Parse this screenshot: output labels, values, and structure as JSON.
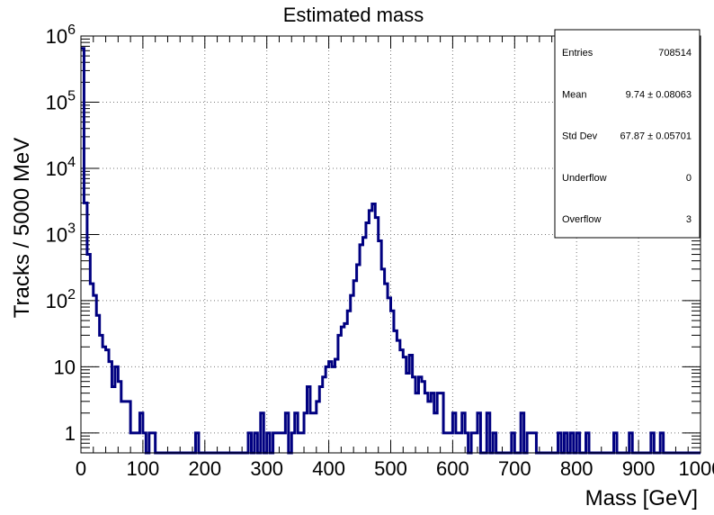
{
  "chart_data": {
    "type": "histogram",
    "title": "Estimated mass",
    "xlabel": "Mass [GeV]",
    "ylabel": "Tracks / 5000 MeV",
    "xlim": [
      0,
      1000
    ],
    "ylim": [
      0.5,
      1000000
    ],
    "yscale": "log",
    "grid": true,
    "bin_width": 5,
    "line_color": "#000080",
    "x_ticks": [
      "0",
      "100",
      "200",
      "300",
      "400",
      "500",
      "600",
      "700",
      "800",
      "900",
      "1000"
    ],
    "y_ticks": [
      {
        "base": "1",
        "exp": "",
        "value": 1
      },
      {
        "base": "10",
        "exp": "",
        "value": 10
      },
      {
        "base": "10",
        "exp": "2",
        "value": 100
      },
      {
        "base": "10",
        "exp": "3",
        "value": 1000
      },
      {
        "base": "10",
        "exp": "4",
        "value": 10000
      },
      {
        "base": "10",
        "exp": "5",
        "value": 100000
      },
      {
        "base": "10",
        "exp": "6",
        "value": 1000000
      }
    ],
    "bins": [
      {
        "x": 0,
        "y": 650000
      },
      {
        "x": 5,
        "y": 3000
      },
      {
        "x": 10,
        "y": 500
      },
      {
        "x": 15,
        "y": 180
      },
      {
        "x": 20,
        "y": 120
      },
      {
        "x": 25,
        "y": 60
      },
      {
        "x": 30,
        "y": 30
      },
      {
        "x": 35,
        "y": 20
      },
      {
        "x": 40,
        "y": 18
      },
      {
        "x": 45,
        "y": 12
      },
      {
        "x": 50,
        "y": 5
      },
      {
        "x": 55,
        "y": 10
      },
      {
        "x": 60,
        "y": 6
      },
      {
        "x": 65,
        "y": 3
      },
      {
        "x": 70,
        "y": 3
      },
      {
        "x": 75,
        "y": 3
      },
      {
        "x": 80,
        "y": 1
      },
      {
        "x": 85,
        "y": 1
      },
      {
        "x": 90,
        "y": 1
      },
      {
        "x": 95,
        "y": 2
      },
      {
        "x": 100,
        "y": 1
      },
      {
        "x": 110,
        "y": 1
      },
      {
        "x": 115,
        "y": 1
      },
      {
        "x": 185,
        "y": 1
      },
      {
        "x": 270,
        "y": 1
      },
      {
        "x": 280,
        "y": 1
      },
      {
        "x": 290,
        "y": 2
      },
      {
        "x": 300,
        "y": 1
      },
      {
        "x": 310,
        "y": 1
      },
      {
        "x": 315,
        "y": 1
      },
      {
        "x": 320,
        "y": 1
      },
      {
        "x": 325,
        "y": 1
      },
      {
        "x": 330,
        "y": 2
      },
      {
        "x": 340,
        "y": 1
      },
      {
        "x": 345,
        "y": 2
      },
      {
        "x": 350,
        "y": 1
      },
      {
        "x": 355,
        "y": 1
      },
      {
        "x": 360,
        "y": 2
      },
      {
        "x": 365,
        "y": 5
      },
      {
        "x": 370,
        "y": 2
      },
      {
        "x": 375,
        "y": 2
      },
      {
        "x": 380,
        "y": 3
      },
      {
        "x": 385,
        "y": 5
      },
      {
        "x": 390,
        "y": 7
      },
      {
        "x": 395,
        "y": 10
      },
      {
        "x": 400,
        "y": 12
      },
      {
        "x": 405,
        "y": 10
      },
      {
        "x": 410,
        "y": 13
      },
      {
        "x": 415,
        "y": 30
      },
      {
        "x": 420,
        "y": 40
      },
      {
        "x": 425,
        "y": 45
      },
      {
        "x": 430,
        "y": 70
      },
      {
        "x": 435,
        "y": 120
      },
      {
        "x": 440,
        "y": 200
      },
      {
        "x": 445,
        "y": 350
      },
      {
        "x": 450,
        "y": 700
      },
      {
        "x": 455,
        "y": 900
      },
      {
        "x": 460,
        "y": 1500
      },
      {
        "x": 465,
        "y": 2300
      },
      {
        "x": 470,
        "y": 2900
      },
      {
        "x": 475,
        "y": 1800
      },
      {
        "x": 480,
        "y": 800
      },
      {
        "x": 485,
        "y": 300
      },
      {
        "x": 490,
        "y": 180
      },
      {
        "x": 495,
        "y": 110
      },
      {
        "x": 500,
        "y": 70
      },
      {
        "x": 505,
        "y": 35
      },
      {
        "x": 510,
        "y": 25
      },
      {
        "x": 515,
        "y": 18
      },
      {
        "x": 520,
        "y": 14
      },
      {
        "x": 525,
        "y": 8
      },
      {
        "x": 530,
        "y": 15
      },
      {
        "x": 535,
        "y": 7
      },
      {
        "x": 540,
        "y": 4
      },
      {
        "x": 545,
        "y": 7
      },
      {
        "x": 550,
        "y": 6
      },
      {
        "x": 555,
        "y": 4
      },
      {
        "x": 560,
        "y": 3
      },
      {
        "x": 565,
        "y": 4
      },
      {
        "x": 570,
        "y": 2
      },
      {
        "x": 575,
        "y": 4
      },
      {
        "x": 580,
        "y": 4
      },
      {
        "x": 585,
        "y": 1
      },
      {
        "x": 590,
        "y": 1
      },
      {
        "x": 595,
        "y": 1
      },
      {
        "x": 600,
        "y": 2
      },
      {
        "x": 605,
        "y": 1
      },
      {
        "x": 610,
        "y": 1
      },
      {
        "x": 615,
        "y": 2
      },
      {
        "x": 620,
        "y": 1
      },
      {
        "x": 630,
        "y": 1
      },
      {
        "x": 635,
        "y": 1
      },
      {
        "x": 640,
        "y": 2
      },
      {
        "x": 655,
        "y": 2
      },
      {
        "x": 665,
        "y": 1
      },
      {
        "x": 695,
        "y": 1
      },
      {
        "x": 710,
        "y": 2
      },
      {
        "x": 720,
        "y": 1
      },
      {
        "x": 725,
        "y": 1
      },
      {
        "x": 730,
        "y": 1
      },
      {
        "x": 770,
        "y": 1
      },
      {
        "x": 780,
        "y": 1
      },
      {
        "x": 790,
        "y": 1
      },
      {
        "x": 800,
        "y": 1
      },
      {
        "x": 815,
        "y": 1
      },
      {
        "x": 860,
        "y": 1
      },
      {
        "x": 885,
        "y": 1
      },
      {
        "x": 920,
        "y": 1
      },
      {
        "x": 935,
        "y": 1
      }
    ]
  },
  "stats_box": {
    "rows": [
      {
        "label": "Entries",
        "value": "708514"
      },
      {
        "label": "Mean",
        "value": "9.74 ± 0.08063"
      },
      {
        "label": "Std Dev",
        "value": "67.87 ± 0.05701"
      },
      {
        "label": "Underflow",
        "value": "0"
      },
      {
        "label": "Overflow",
        "value": "3"
      }
    ]
  }
}
